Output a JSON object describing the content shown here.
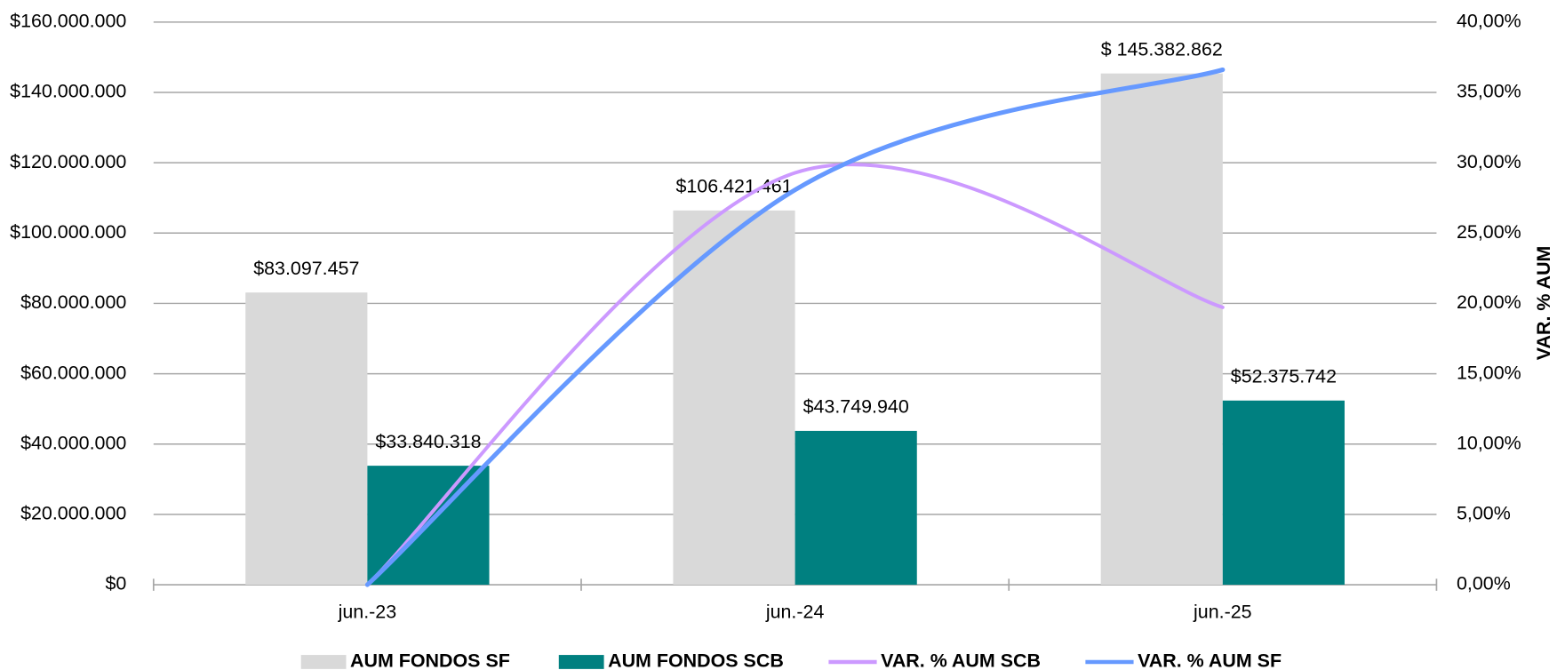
{
  "chart_data": {
    "type": "bar-line",
    "categories": [
      "jun.-23",
      "jun.-24",
      "jun.-25"
    ],
    "series": [
      {
        "name": "AUM FONDOS SF",
        "color": "#d9d9d9",
        "type": "bar",
        "values": [
          83097457,
          106421461,
          145382862
        ],
        "value_labels": [
          "$83.097.457",
          "$106.421.461",
          "$ 145.382.862"
        ]
      },
      {
        "name": "AUM FONDOS SCB",
        "color": "#008080",
        "type": "bar",
        "values": [
          33840318,
          43749940,
          52375742
        ],
        "value_labels": [
          "$33.840.318",
          "$43.749.940",
          "$52.375.742"
        ]
      },
      {
        "name": "VAR. % AUM SCB",
        "color": "#cc99ff",
        "type": "line",
        "axis": "y2",
        "values": [
          0,
          29.28,
          19.72
        ]
      },
      {
        "name": "VAR. % AUM SF",
        "color": "#6699ff",
        "type": "line",
        "axis": "y2",
        "values": [
          0,
          28.07,
          36.61
        ]
      }
    ],
    "ylim": [
      0,
      160000000
    ],
    "yticks": [
      {
        "value": 0,
        "label": "$0"
      },
      {
        "value": 20000000,
        "label": "$20.000.000"
      },
      {
        "value": 40000000,
        "label": "$40.000.000"
      },
      {
        "value": 60000000,
        "label": "$60.000.000"
      },
      {
        "value": 80000000,
        "label": "$80.000.000"
      },
      {
        "value": 100000000,
        "label": "$100.000.000"
      },
      {
        "value": 120000000,
        "label": "$120.000.000"
      },
      {
        "value": 140000000,
        "label": "$140.000.000"
      },
      {
        "value": 160000000,
        "label": "$160.000.000"
      }
    ],
    "y2label": "VAR. % AUM",
    "y2lim": [
      0,
      40
    ],
    "y2ticks": [
      {
        "value": 0,
        "label": "0,00%"
      },
      {
        "value": 5,
        "label": "5,00%"
      },
      {
        "value": 10,
        "label": "10,00%"
      },
      {
        "value": 15,
        "label": "15,00%"
      },
      {
        "value": 20,
        "label": "20,00%"
      },
      {
        "value": 25,
        "label": "25,00%"
      },
      {
        "value": 30,
        "label": "30,00%"
      },
      {
        "value": 35,
        "label": "35,00%"
      },
      {
        "value": 40,
        "label": "40,00%"
      }
    ],
    "grid": true,
    "legend": "bottom"
  }
}
